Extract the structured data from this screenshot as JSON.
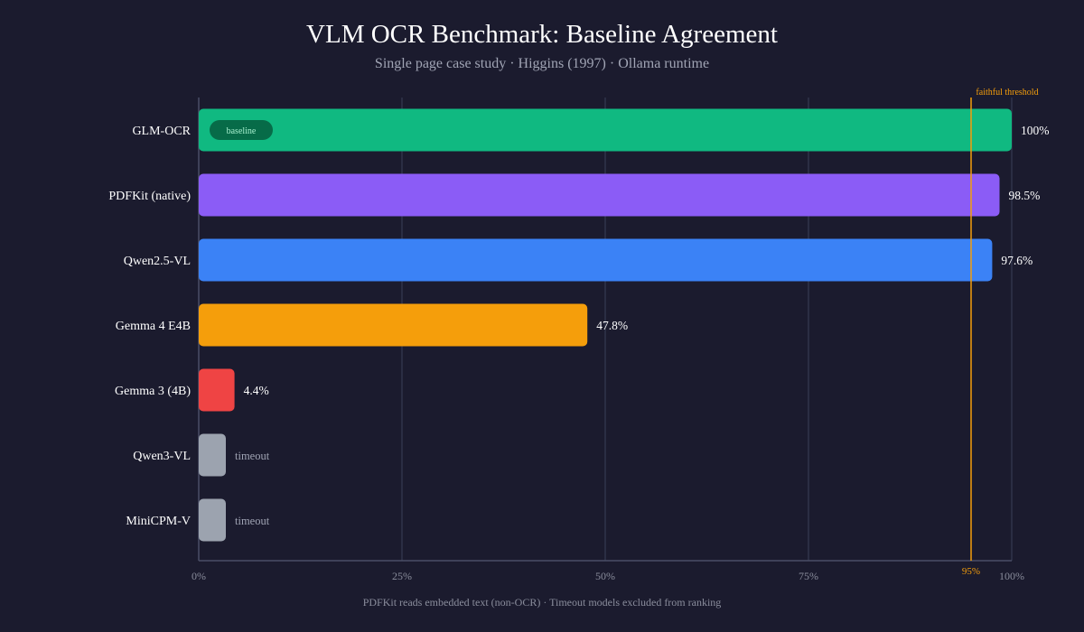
{
  "title": "VLM OCR Benchmark: Baseline Agreement",
  "subtitle": "Single page case study · Higgins (1997) · Ollama runtime",
  "footnote": "PDFKit reads embedded text (non-OCR) · Timeout models excluded from ranking",
  "colors": {
    "background": "#1b1b2e",
    "grid": "#363a52",
    "threshold": "#f59e0b",
    "badge_bg": "#076b48",
    "badge_text": "#a7f0cf"
  },
  "chart_data": {
    "type": "bar",
    "orientation": "horizontal",
    "categories": [
      "GLM-OCR",
      "PDFKit (native)",
      "Qwen2.5-VL",
      "Gemma 4 E4B",
      "Gemma 3 (4B)",
      "Qwen3-VL",
      "MiniCPM-V"
    ],
    "values": [
      100,
      98.5,
      97.6,
      47.8,
      4.4,
      null,
      null
    ],
    "value_labels": [
      "100%",
      "98.5%",
      "97.6%",
      "47.8%",
      "4.4%",
      "timeout",
      "timeout"
    ],
    "bar_colors": [
      "#10b981",
      "#8b5cf6",
      "#3b82f6",
      "#f59e0b",
      "#ef4444",
      "#9ca3af",
      "#9ca3af"
    ],
    "badges": [
      {
        "category": "GLM-OCR",
        "text": "baseline"
      }
    ],
    "x_ticks": [
      0,
      25,
      50,
      75,
      100
    ],
    "x_tick_labels": [
      "0%",
      "25%",
      "50%",
      "75%",
      "100%"
    ],
    "xlim": [
      0,
      100
    ],
    "grid": true,
    "threshold": {
      "value": 95,
      "label": "faithful threshold",
      "tick_label": "95%"
    }
  }
}
